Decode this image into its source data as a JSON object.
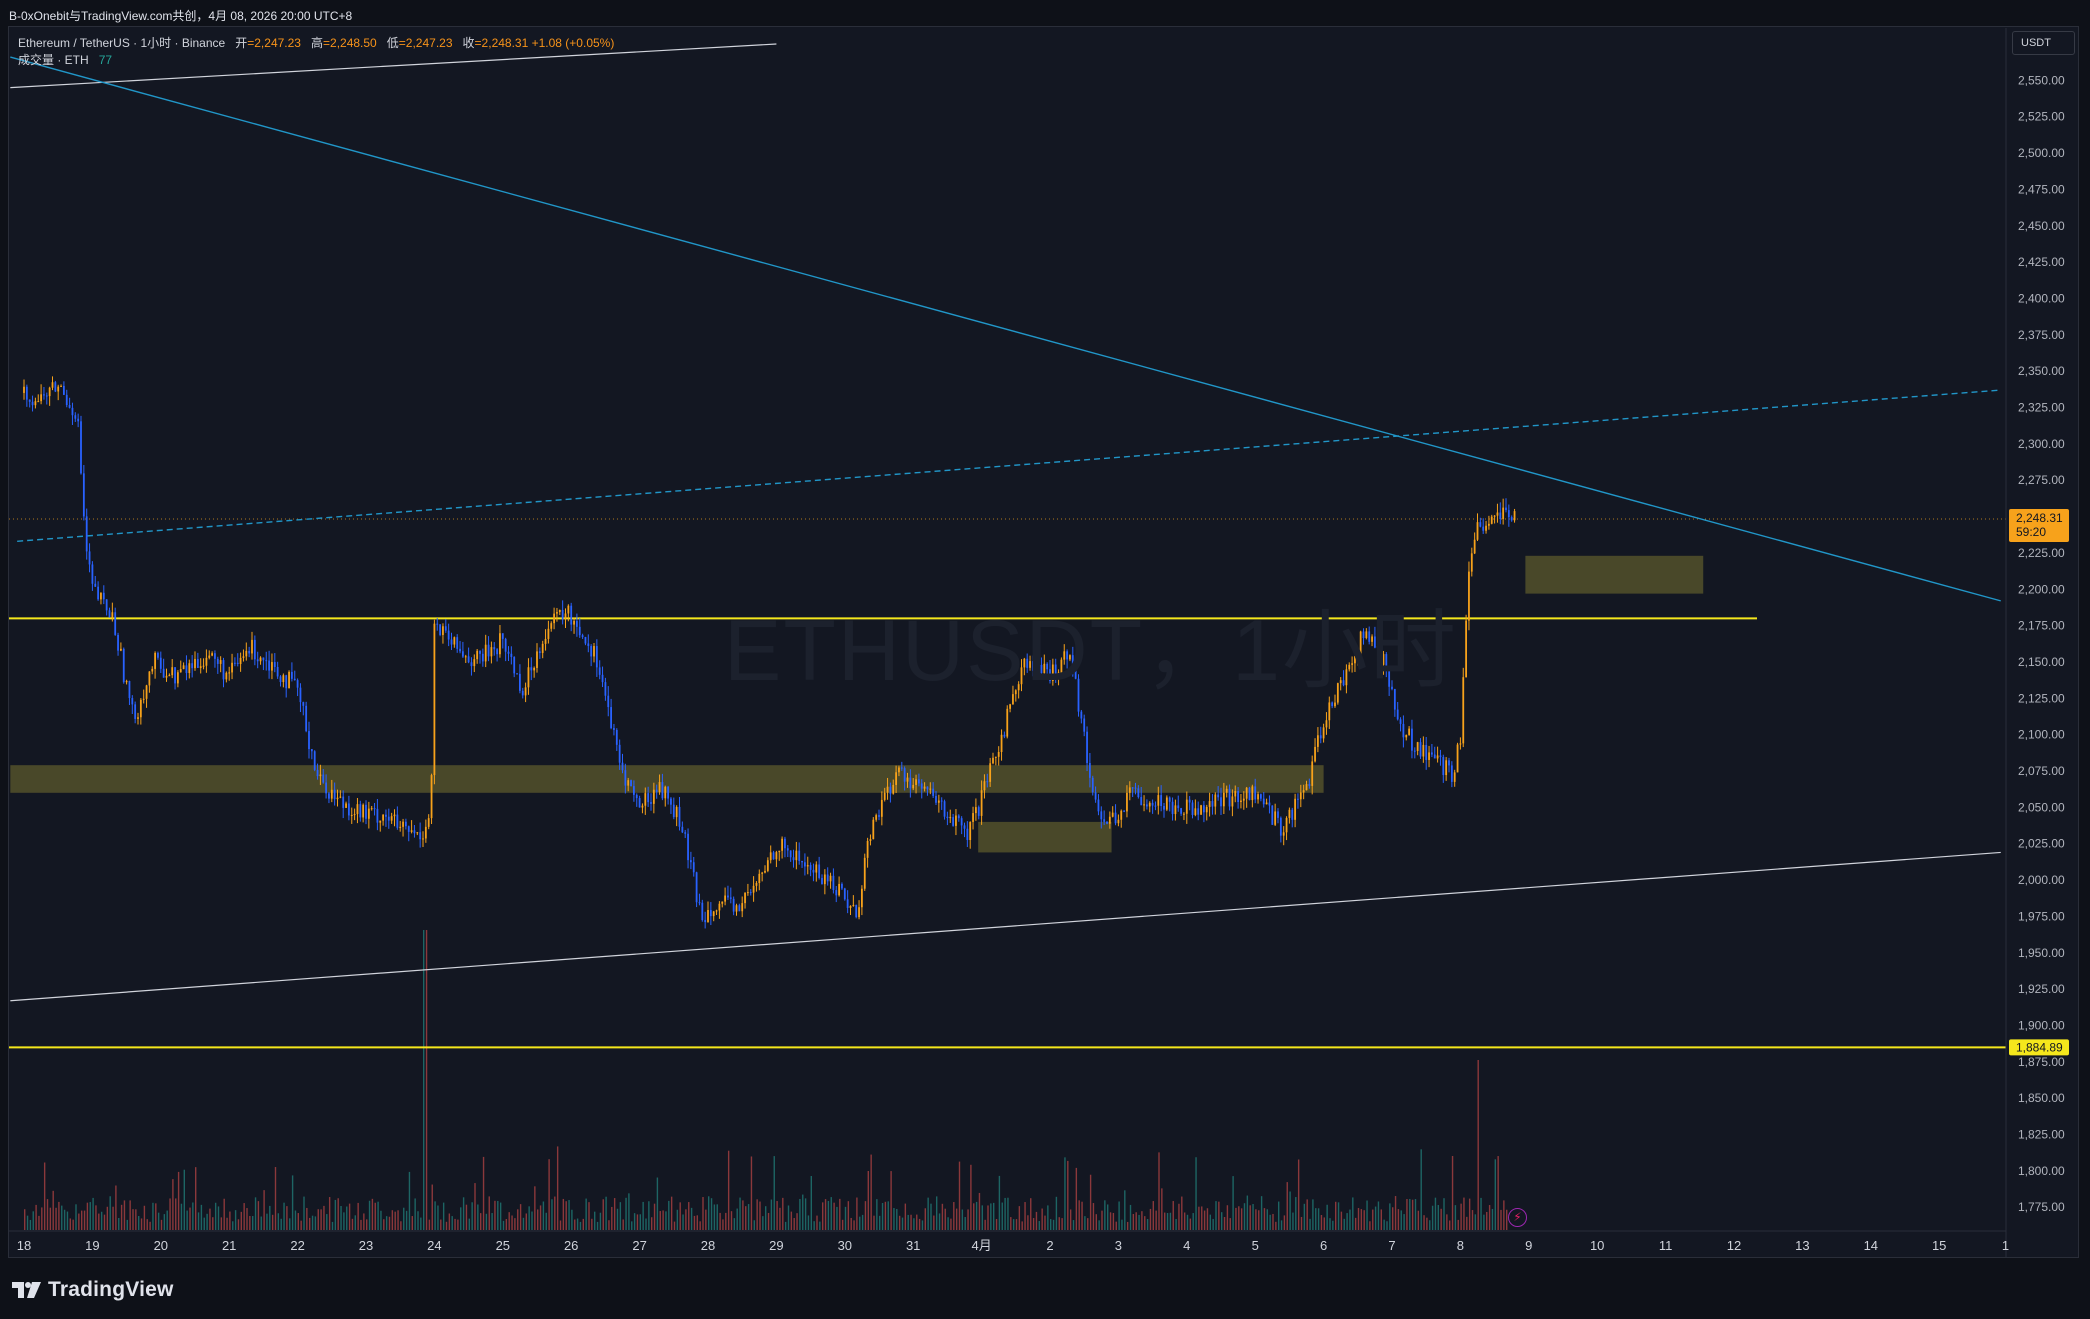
{
  "header": {
    "share_text": "B-0xOnebit与TradingView.com共创，4月 08, 2026 20:00 UTC+8"
  },
  "legend": {
    "symbol": "Ethereum / TetherUS · 1小时 · Binance",
    "open_label": "开",
    "open": "=2,247.23",
    "high_label": "高",
    "high": "=2,248.50",
    "low_label": "低",
    "low": "=2,247.23",
    "close_label": "收",
    "close": "=2,248.31",
    "change": "+1.08 (+0.05%)",
    "volume_label": "成交量 · ETH",
    "volume_value": "77"
  },
  "watermark": "ETHUSDT，1小时",
  "unit": "USDT",
  "brand": "TradingView",
  "colors": {
    "background": "#131722",
    "up": "#f7a21b",
    "down": "#2962ff",
    "trend": "#2196c8",
    "support_line": "#f5e71c",
    "zone": "#5c5a2c"
  },
  "chart_data": {
    "type": "line",
    "title": "ETHUSDT，1小时",
    "price_axis": {
      "ylim": [
        1760,
        2575
      ],
      "ticks": [
        1775,
        1800,
        1825,
        1850,
        1875,
        1900,
        1925,
        1950,
        1975,
        2000,
        2025,
        2050,
        2075,
        2100,
        2125,
        2150,
        2175,
        2200,
        2225,
        2250,
        2275,
        2300,
        2325,
        2350,
        2375,
        2400,
        2425,
        2450,
        2475,
        2500,
        2525,
        2550
      ],
      "tick_labels": [
        "1,775.00",
        "1,800.00",
        "1,825.00",
        "1,850.00",
        "1,875.00",
        "1,900.00",
        "1,925.00",
        "1,950.00",
        "1,975.00",
        "2,000.00",
        "2,025.00",
        "2,050.00",
        "2,075.00",
        "2,100.00",
        "2,125.00",
        "2,150.00",
        "2,175.00",
        "2,200.00",
        "2,225.00",
        "2,250.00",
        "2,275.00",
        "2,300.00",
        "2,325.00",
        "2,350.00",
        "2,375.00",
        "2,400.00",
        "2,425.00",
        "2,450.00",
        "2,475.00",
        "2,500.00",
        "2,525.00",
        "2,550.00"
      ]
    },
    "time_axis": {
      "labels": [
        "18",
        "19",
        "20",
        "21",
        "22",
        "23",
        "24",
        "25",
        "26",
        "27",
        "28",
        "29",
        "30",
        "31",
        "4月",
        "2",
        "3",
        "4",
        "5",
        "6",
        "7",
        "8",
        "9",
        "10",
        "11",
        "12",
        "13",
        "14",
        "15",
        "1"
      ],
      "day_index": [
        0,
        1,
        2,
        3,
        4,
        5,
        6,
        7,
        8,
        9,
        10,
        11,
        12,
        13,
        14,
        15,
        16,
        17,
        18,
        19,
        20,
        21,
        22,
        23,
        24,
        25,
        26,
        27,
        28,
        28.97
      ]
    },
    "price_path": {
      "day": [
        0,
        0.2,
        0.5,
        0.78,
        0.9,
        1.0,
        1.3,
        1.6,
        1.9,
        2.2,
        2.7,
        3.0,
        3.3,
        3.6,
        4.0,
        4.3,
        4.6,
        5.0,
        5.3,
        5.5,
        5.8,
        5.95,
        6.0,
        6.3,
        6.6,
        7.0,
        7.3,
        7.6,
        7.9,
        8.1,
        8.4,
        8.7,
        9.0,
        9.3,
        9.6,
        9.9,
        10.1,
        10.4,
        10.7,
        11.0,
        11.3,
        11.6,
        11.9,
        12.2,
        12.3,
        12.5,
        12.8,
        13.2,
        13.5,
        13.8,
        14.0,
        14.3,
        14.6,
        15.0,
        15.3,
        15.55,
        15.75,
        16.0,
        16.2,
        16.5,
        17.0,
        17.5,
        18.0,
        18.4,
        18.8,
        19.0,
        19.3,
        19.6,
        19.9,
        20.1,
        20.3,
        20.6,
        20.9,
        21.0,
        21.1,
        21.25,
        21.4,
        21.6,
        21.8
      ],
      "price": [
        2335,
        2330,
        2340,
        2320,
        2230,
        2200,
        2180,
        2110,
        2150,
        2140,
        2155,
        2140,
        2160,
        2150,
        2130,
        2070,
        2055,
        2045,
        2045,
        2035,
        2030,
        2050,
        2175,
        2160,
        2150,
        2165,
        2130,
        2170,
        2185,
        2175,
        2150,
        2080,
        2050,
        2065,
        2040,
        1975,
        1985,
        1980,
        1995,
        2025,
        2015,
        2005,
        1995,
        1975,
        2020,
        2050,
        2075,
        2060,
        2045,
        2030,
        2055,
        2100,
        2150,
        2140,
        2160,
        2080,
        2040,
        2045,
        2060,
        2055,
        2050,
        2055,
        2060,
        2035,
        2070,
        2110,
        2140,
        2170,
        2150,
        2105,
        2095,
        2085,
        2070,
        2100,
        2200,
        2240,
        2245,
        2250,
        2248
      ]
    },
    "last_price": 2248.31,
    "last_price_label": "2,248.31",
    "countdown": "59:20",
    "horizontal_levels": [
      {
        "price": 2180,
        "label": ""
      },
      {
        "price": 1884.89,
        "label": "1,884.89"
      }
    ],
    "zones": [
      {
        "day_start": -0.2,
        "day_end": 19.0,
        "price_low": 2060,
        "price_high": 2079
      },
      {
        "day_start": 13.95,
        "day_end": 15.9,
        "price_low": 2019,
        "price_high": 2040
      },
      {
        "day_start": 21.95,
        "day_end": 24.55,
        "price_low": 2197,
        "price_high": 2223
      }
    ],
    "trendlines": [
      {
        "kind": "solid-white",
        "day_start": -0.2,
        "price_start": 2545,
        "day_end": 11.0,
        "price_end": 2575
      },
      {
        "kind": "cyan-descending",
        "day_start": -0.2,
        "price_start": 2566,
        "day_end": 28.9,
        "price_end": 2192
      },
      {
        "kind": "cyan-dashed",
        "day_start": -0.1,
        "price_start": 2233,
        "day_end": 28.9,
        "price_end": 2337
      },
      {
        "kind": "solid-white",
        "day_start": -0.2,
        "price_start": 1917,
        "day_end": 28.9,
        "price_end": 2019
      }
    ],
    "volume": {
      "max_spike_day": 5.85,
      "max_spike_label": "spike",
      "recent_spike_day": 21.25
    }
  }
}
